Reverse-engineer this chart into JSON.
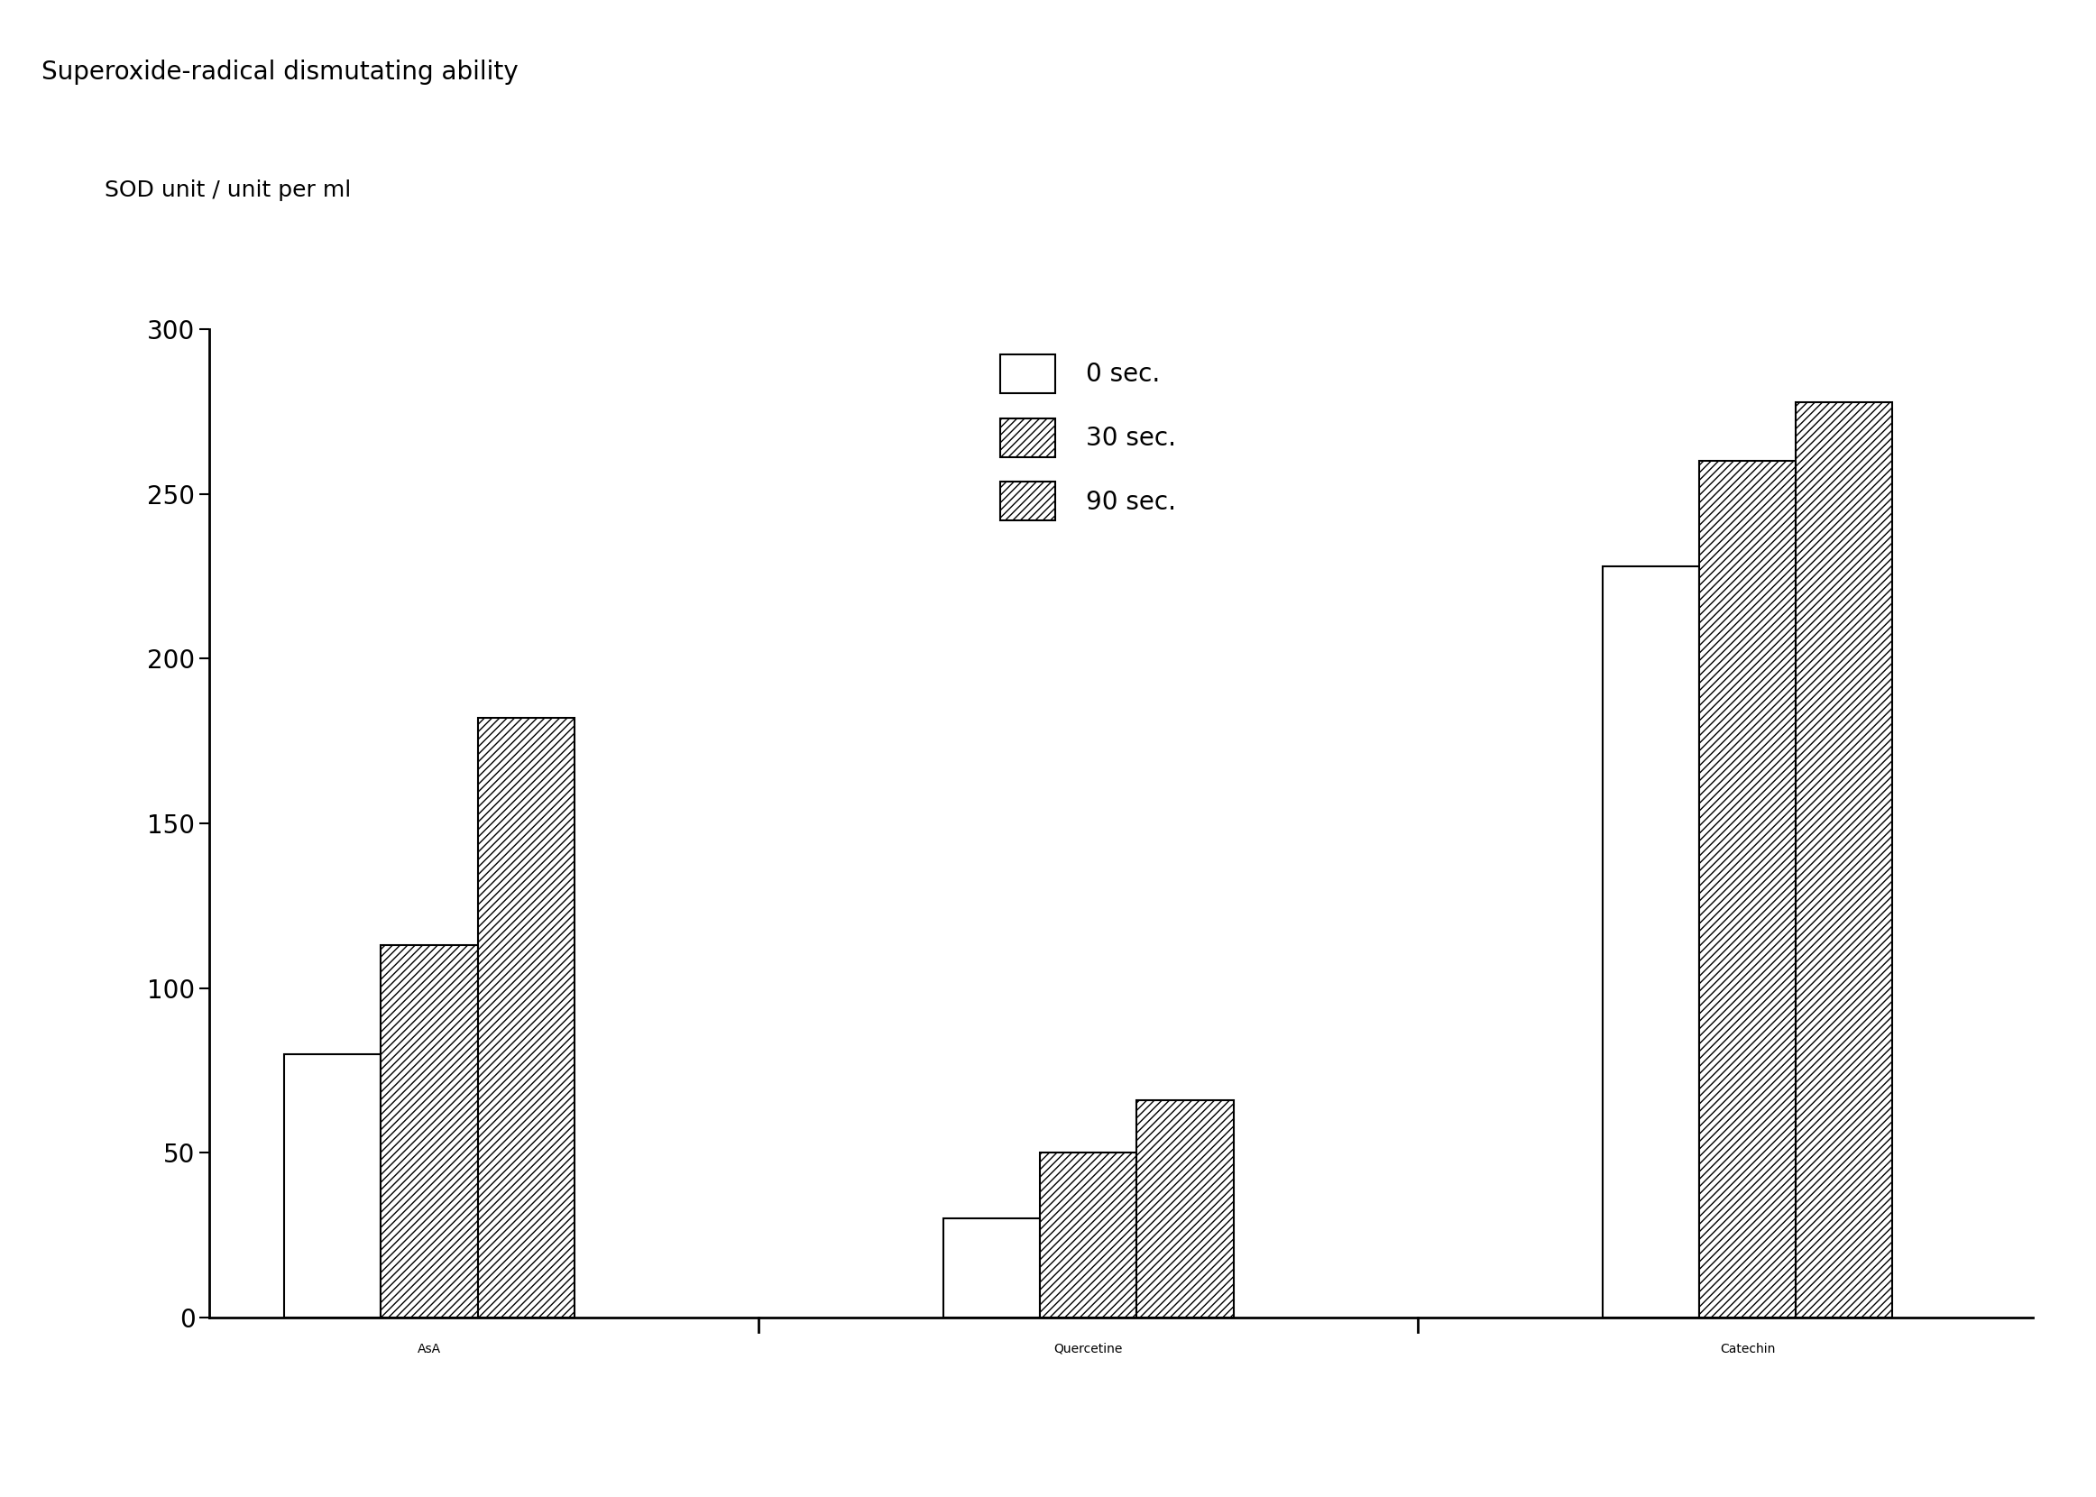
{
  "title": "Superoxide-radical dismutating ability",
  "ylabel": "SOD unit / unit per ml",
  "categories": [
    "AsA",
    "Quercetine",
    "Catechin"
  ],
  "series": {
    "0 sec.": [
      80,
      30,
      228
    ],
    "30 sec.": [
      113,
      50,
      260
    ],
    "90 sec.": [
      182,
      66,
      278
    ]
  },
  "series_order": [
    "0 sec.",
    "30 sec.",
    "90 sec."
  ],
  "ylim": [
    0,
    300
  ],
  "yticks": [
    0,
    50,
    100,
    150,
    200,
    250,
    300
  ],
  "bar_width": 0.22,
  "background_color": "#ffffff",
  "hatch_patterns": [
    "",
    "////",
    "////"
  ],
  "bar_face_colors": [
    "white",
    "white",
    "white"
  ],
  "bar_edge_color": "black",
  "title_fontsize": 20,
  "label_fontsize": 18,
  "tick_fontsize": 20,
  "legend_fontsize": 20,
  "group_centers": [
    1.0,
    2.5,
    4.0
  ]
}
